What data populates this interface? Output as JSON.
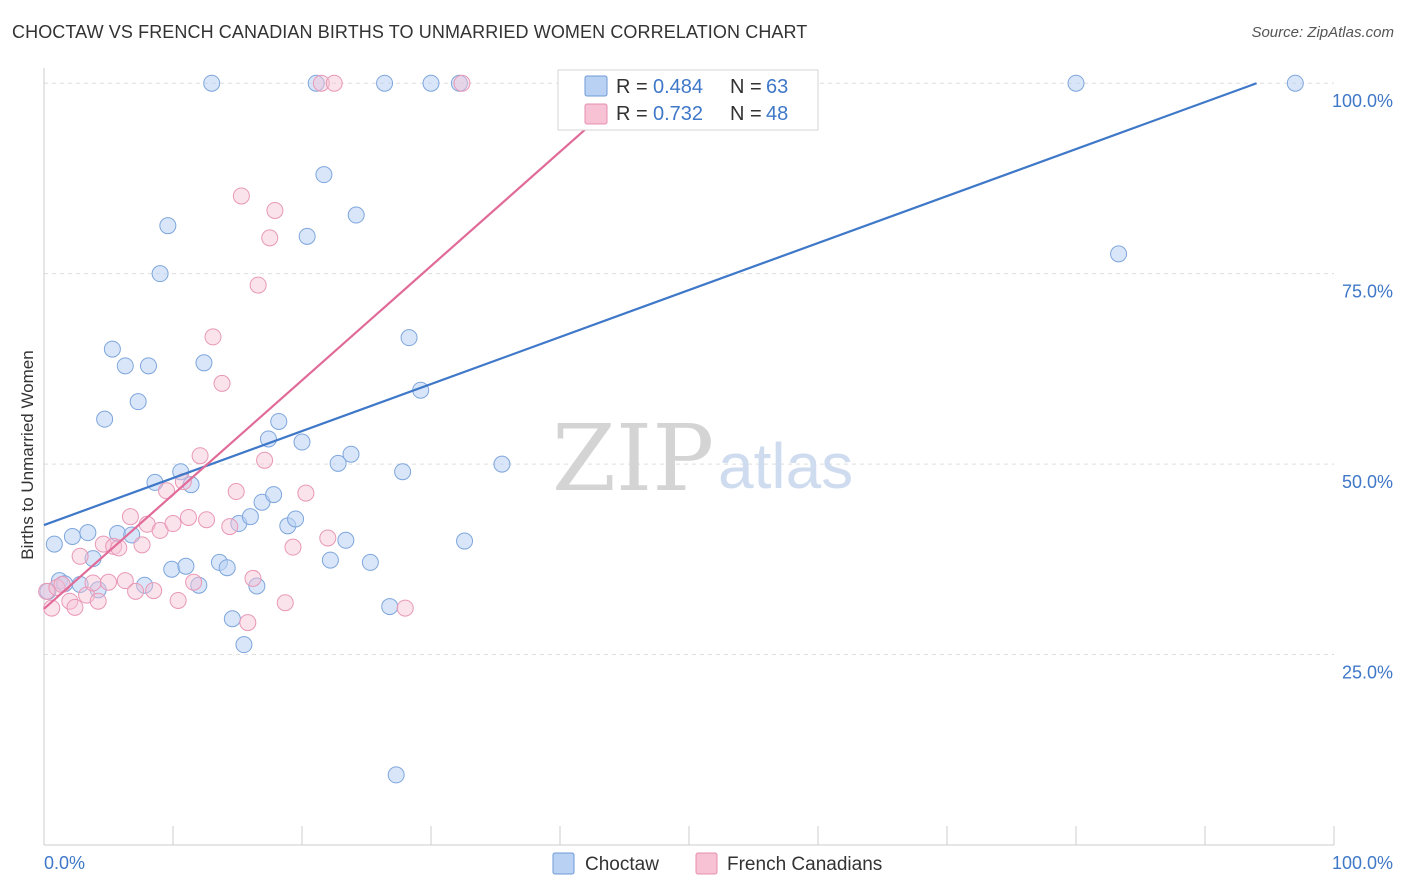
{
  "title": "CHOCTAW VS FRENCH CANADIAN BIRTHS TO UNMARRIED WOMEN CORRELATION CHART",
  "source": "Source: ZipAtlas.com",
  "watermark": {
    "zip": "ZIP",
    "atlas": "atlas"
  },
  "colors": {
    "blue": "#3f78c8",
    "blue_fill": "#b9d2f4",
    "pink": "#e06b98",
    "pink_fill": "#f7c2d4",
    "grid": "#dddddd"
  },
  "legend": {
    "r_label": "R =",
    "n_label": "N =",
    "rows": [
      {
        "series": "Choctaw",
        "r": "0.484",
        "n": "63"
      },
      {
        "series": "French Canadians",
        "r": "0.732",
        "n": "48"
      }
    ]
  },
  "bottom_legend": [
    "Choctaw",
    "French Canadians"
  ],
  "chart_data": {
    "type": "scatter",
    "title": "CHOCTAW VS FRENCH CANADIAN BIRTHS TO UNMARRIED WOMEN CORRELATION CHART",
    "xlabel": "",
    "ylabel": "Births to Unmarried Women",
    "xlim": [
      0,
      100
    ],
    "ylim": [
      0,
      102
    ],
    "x_tick_labels": [
      "0.0%",
      "100.0%"
    ],
    "y_ticks": [
      {
        "value": 25,
        "label": "25.0%"
      },
      {
        "value": 50,
        "label": "50.0%"
      },
      {
        "value": 75,
        "label": "75.0%"
      },
      {
        "value": 100,
        "label": "100.0%"
      }
    ],
    "series": [
      {
        "name": "Choctaw",
        "color": "#3f78c8",
        "r": 0.484,
        "n": 63,
        "trend": {
          "x": [
            0,
            94
          ],
          "y": [
            42,
            100
          ]
        },
        "points": [
          [
            0.3,
            33.3
          ],
          [
            0.8,
            39.5
          ],
          [
            1.2,
            34.7
          ],
          [
            1.6,
            34.3
          ],
          [
            2.2,
            40.5
          ],
          [
            2.8,
            34.2
          ],
          [
            3.4,
            41.0
          ],
          [
            3.8,
            37.6
          ],
          [
            4.2,
            33.5
          ],
          [
            4.7,
            55.9
          ],
          [
            5.3,
            65.1
          ],
          [
            5.7,
            40.9
          ],
          [
            6.3,
            62.9
          ],
          [
            6.8,
            40.7
          ],
          [
            7.3,
            58.2
          ],
          [
            7.8,
            34.1
          ],
          [
            8.1,
            62.9
          ],
          [
            8.6,
            47.6
          ],
          [
            9.0,
            75.0
          ],
          [
            9.6,
            81.3
          ],
          [
            9.9,
            36.2
          ],
          [
            10.6,
            49.0
          ],
          [
            11.0,
            36.6
          ],
          [
            11.4,
            47.3
          ],
          [
            12.0,
            34.1
          ],
          [
            12.4,
            63.3
          ],
          [
            13.0,
            100.0
          ],
          [
            13.6,
            37.1
          ],
          [
            14.2,
            36.4
          ],
          [
            14.6,
            29.7
          ],
          [
            15.1,
            42.2
          ],
          [
            15.5,
            26.3
          ],
          [
            16.0,
            43.1
          ],
          [
            16.5,
            34.0
          ],
          [
            16.9,
            45.0
          ],
          [
            17.4,
            53.3
          ],
          [
            17.8,
            46.0
          ],
          [
            18.2,
            55.6
          ],
          [
            18.9,
            41.9
          ],
          [
            19.5,
            42.8
          ],
          [
            20.0,
            52.9
          ],
          [
            20.4,
            79.9
          ],
          [
            21.1,
            100.0
          ],
          [
            21.7,
            88.0
          ],
          [
            22.2,
            37.4
          ],
          [
            22.8,
            50.1
          ],
          [
            23.4,
            40.0
          ],
          [
            23.8,
            51.3
          ],
          [
            24.2,
            82.7
          ],
          [
            25.3,
            37.1
          ],
          [
            26.4,
            100.0
          ],
          [
            26.8,
            31.3
          ],
          [
            27.3,
            9.2
          ],
          [
            27.8,
            49.0
          ],
          [
            28.3,
            66.6
          ],
          [
            29.2,
            59.7
          ],
          [
            30.0,
            100.0
          ],
          [
            32.2,
            100.0
          ],
          [
            32.6,
            39.9
          ],
          [
            35.5,
            50.0
          ],
          [
            80.0,
            100.0
          ],
          [
            83.3,
            77.6
          ],
          [
            97.0,
            100.0
          ]
        ]
      },
      {
        "name": "French Canadians",
        "color": "#e06b98",
        "r": 0.732,
        "n": 48,
        "trend": {
          "x": [
            0,
            46
          ],
          "y": [
            31,
            100
          ]
        },
        "points": [
          [
            0.2,
            33.3
          ],
          [
            0.6,
            31.1
          ],
          [
            1.0,
            33.8
          ],
          [
            1.4,
            34.2
          ],
          [
            2.0,
            32.0
          ],
          [
            2.4,
            31.2
          ],
          [
            2.8,
            37.9
          ],
          [
            3.3,
            32.8
          ],
          [
            3.8,
            34.4
          ],
          [
            4.2,
            32.0
          ],
          [
            4.6,
            39.5
          ],
          [
            5.0,
            34.5
          ],
          [
            5.4,
            39.2
          ],
          [
            5.8,
            39.0
          ],
          [
            6.3,
            34.7
          ],
          [
            6.7,
            43.1
          ],
          [
            7.1,
            33.3
          ],
          [
            7.6,
            39.4
          ],
          [
            8.0,
            42.1
          ],
          [
            8.5,
            33.4
          ],
          [
            9.0,
            41.3
          ],
          [
            9.5,
            46.5
          ],
          [
            10.0,
            42.2
          ],
          [
            10.4,
            32.1
          ],
          [
            10.8,
            47.7
          ],
          [
            11.2,
            43.0
          ],
          [
            11.6,
            34.5
          ],
          [
            12.1,
            51.1
          ],
          [
            12.6,
            42.7
          ],
          [
            13.1,
            66.7
          ],
          [
            13.8,
            60.6
          ],
          [
            14.4,
            41.8
          ],
          [
            14.9,
            46.4
          ],
          [
            15.3,
            85.2
          ],
          [
            15.8,
            29.2
          ],
          [
            16.2,
            35.0
          ],
          [
            16.6,
            73.5
          ],
          [
            17.1,
            50.5
          ],
          [
            17.5,
            79.7
          ],
          [
            17.9,
            83.3
          ],
          [
            18.7,
            31.8
          ],
          [
            19.3,
            39.1
          ],
          [
            20.3,
            46.2
          ],
          [
            21.5,
            100.0
          ],
          [
            22.0,
            40.3
          ],
          [
            22.5,
            100.0
          ],
          [
            28.0,
            31.1
          ],
          [
            32.4,
            100.0
          ]
        ]
      }
    ]
  }
}
